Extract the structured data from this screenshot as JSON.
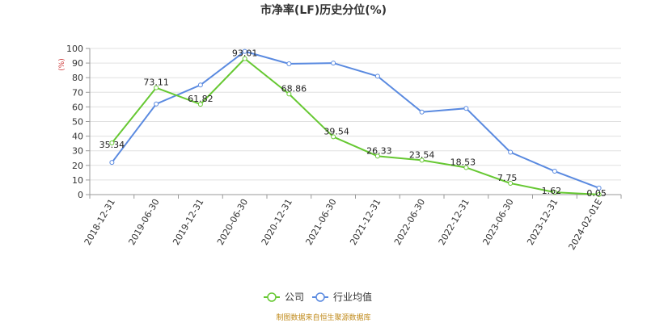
{
  "chart_data": {
    "type": "line",
    "title": "市净率(LF)历史分位(%)",
    "y_unit": "(%)",
    "ylim": [
      0,
      100
    ],
    "y_ticks": [
      0,
      10,
      20,
      30,
      40,
      50,
      60,
      70,
      80,
      90,
      100
    ],
    "grid": true,
    "categories": [
      "2018-12-31",
      "2019-06-30",
      "2019-12-31",
      "2020-06-30",
      "2020-12-31",
      "2021-06-30",
      "2021-12-31",
      "2022-06-30",
      "2022-12-31",
      "2023-06-30",
      "2023-12-31",
      "2024-02-01E"
    ],
    "series": [
      {
        "name": "公司",
        "color": "#66c832",
        "values": [
          35.34,
          73.11,
          61.82,
          93.01,
          68.86,
          39.54,
          26.33,
          23.54,
          18.53,
          7.75,
          1.62,
          0.05
        ],
        "labels": [
          "35.34",
          "73.11",
          "61.82",
          "93.01",
          "68.86",
          "39.54",
          "26.33",
          "23.54",
          "18.53",
          "7.75",
          "1.62",
          "0.05"
        ]
      },
      {
        "name": "行业均值",
        "color": "#5a8ae0",
        "values": [
          22,
          62,
          75,
          98,
          89.5,
          90,
          81,
          56.5,
          59,
          29,
          16,
          4.5
        ]
      }
    ],
    "legend_position": "bottom-center",
    "source_text": "制图数据来自恒生聚源数据库"
  }
}
